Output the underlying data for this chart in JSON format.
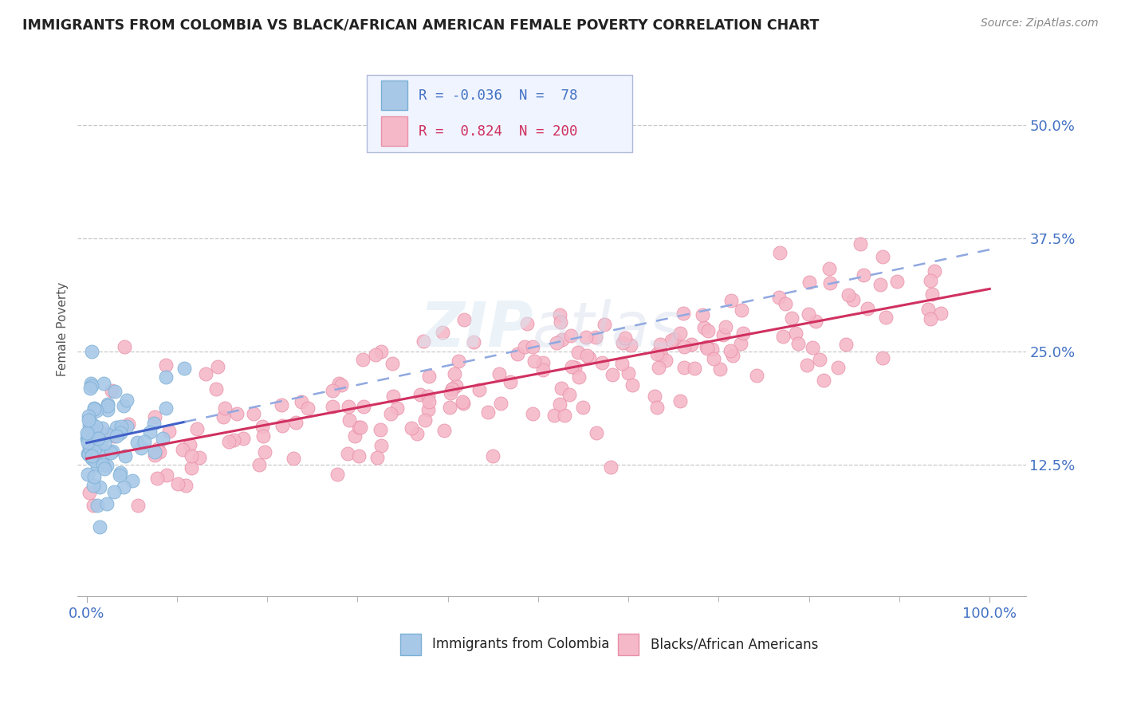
{
  "title": "IMMIGRANTS FROM COLOMBIA VS BLACK/AFRICAN AMERICAN FEMALE POVERTY CORRELATION CHART",
  "source": "Source: ZipAtlas.com",
  "ylabel": "Female Poverty",
  "yticks": [
    0.125,
    0.25,
    0.375,
    0.5
  ],
  "ytick_labels": [
    "12.5%",
    "25.0%",
    "37.5%",
    "50.0%"
  ],
  "xticks": [
    0.0,
    1.0
  ],
  "xtick_labels": [
    "0.0%",
    "100.0%"
  ],
  "series1_color": "#a8c8e8",
  "series2_color": "#f5b8c8",
  "series1_edge": "#7aafd4",
  "series2_edge": "#e890a8",
  "line1_color": "#4060c8",
  "line2_color": "#d03060",
  "line1_dash_color": "#90a8e0",
  "R1": -0.036,
  "N1": 78,
  "R2": 0.824,
  "N2": 200,
  "background_color": "#ffffff",
  "grid_color": "#c8c8c8",
  "title_color": "#222222",
  "label_color": "#4472c4",
  "pink_label_color": "#d03060",
  "legend_box_color": "#f0f4ff",
  "legend_border_color": "#b0b8d8",
  "watermark_color": "#d8e8f4",
  "seed1": 42,
  "seed2": 123
}
